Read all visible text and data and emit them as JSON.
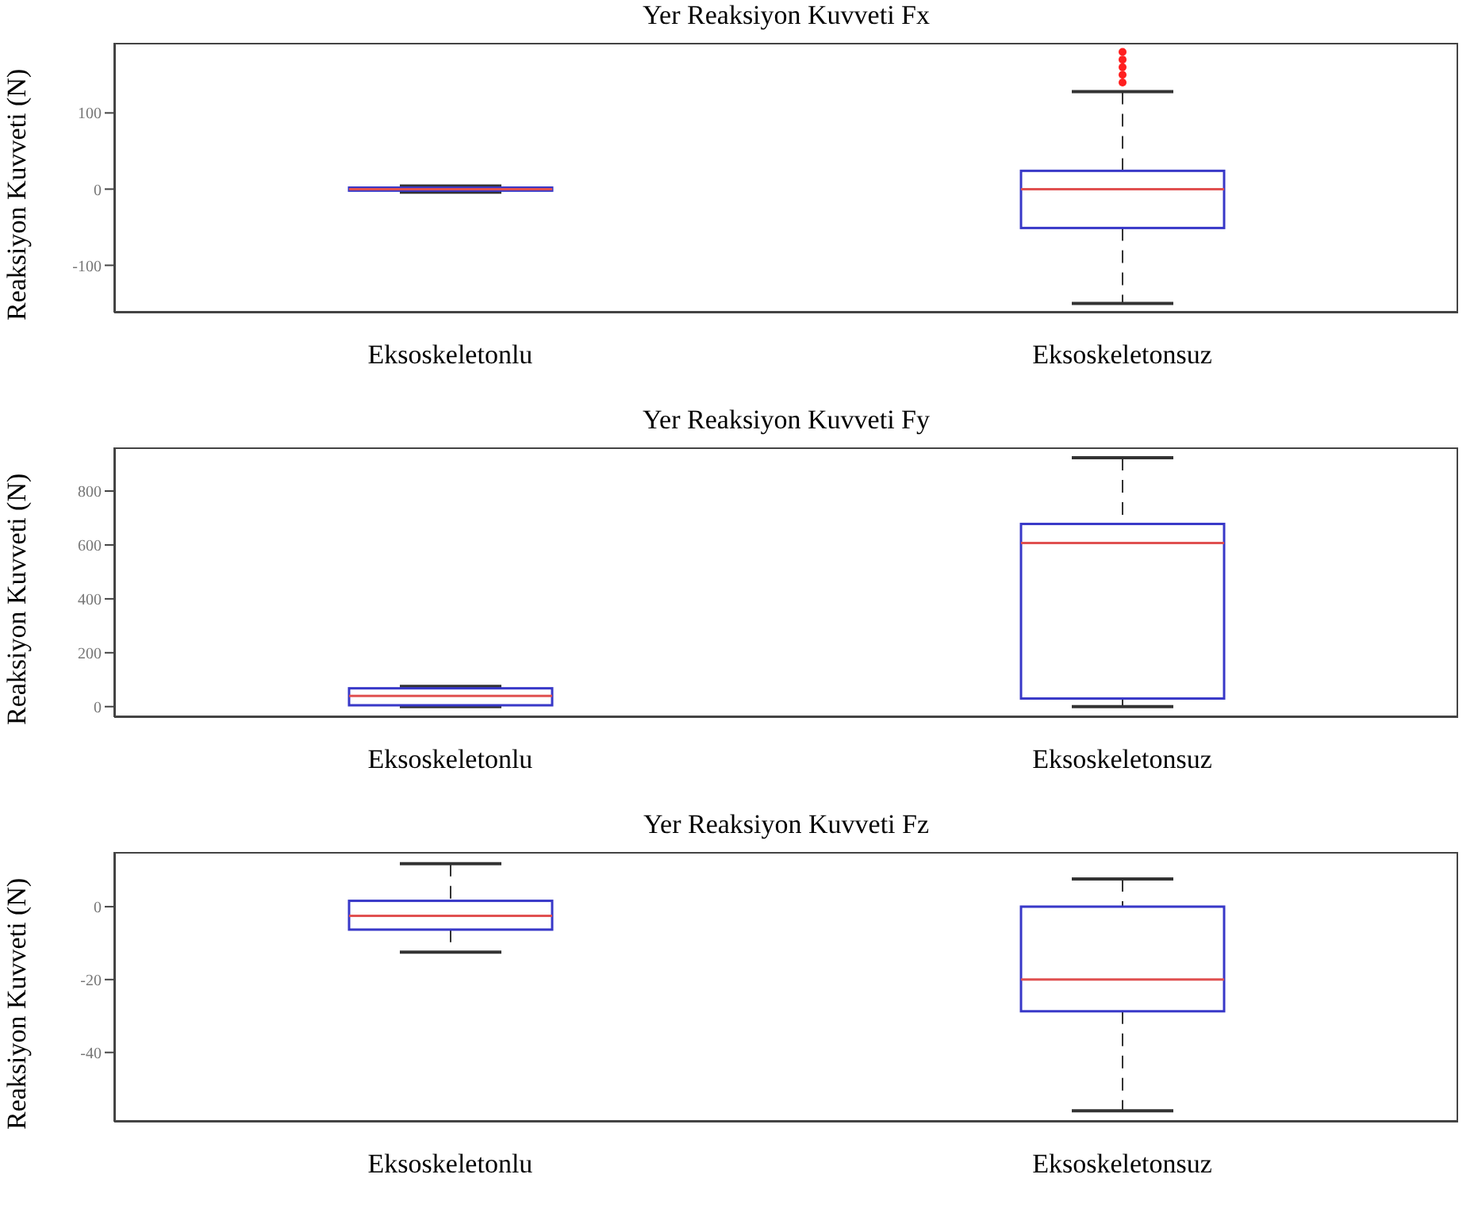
{
  "chart_data": [
    {
      "type": "box",
      "title": "Yer Reaksiyon Kuvveti Fx",
      "ylabel": "Reaksiyon Kuvveti (N)",
      "categories": [
        "Eksoskeletonlu",
        "Eksoskeletonsuz"
      ],
      "ylim": [
        -162,
        192
      ],
      "yticks": [
        -100,
        0,
        100
      ],
      "series": [
        {
          "color": "#3838c8",
          "boxes": [
            {
              "low": -4,
              "q1": -2,
              "median": 0,
              "q3": 2,
              "high": 4
            },
            {
              "low": -150,
              "q1": -51,
              "median": 0,
              "q3": 24,
              "high": 128,
              "outliers": [
                140,
                150,
                160,
                170,
                180
              ]
            }
          ]
        }
      ]
    },
    {
      "type": "box",
      "title": "Yer Reaksiyon Kuvveti Fy",
      "ylabel": "Reaksiyon Kuvveti (N)",
      "categories": [
        "Eksoskeletonlu",
        "Eksoskeletonsuz"
      ],
      "ylim": [
        -39,
        962
      ],
      "yticks": [
        0,
        200,
        400,
        600,
        800
      ],
      "series": [
        {
          "color": "#3838c8",
          "boxes": [
            {
              "low": 0,
              "q1": 5,
              "median": 40,
              "q3": 68,
              "high": 75
            },
            {
              "low": 0,
              "q1": 30,
              "median": 607,
              "q3": 678,
              "high": 924
            }
          ]
        }
      ]
    },
    {
      "type": "box",
      "title": "Yer Reaksiyon Kuvveti Fz",
      "ylabel": "Reaksiyon Kuvveti (N)",
      "categories": [
        "Eksoskeletonlu",
        "Eksoskeletonsuz"
      ],
      "ylim": [
        -59,
        15
      ],
      "yticks": [
        -40,
        -20,
        0
      ],
      "series": [
        {
          "color": "#3838c8",
          "boxes": [
            {
              "low": -12.5,
              "q1": -6.3,
              "median": -2.5,
              "q3": 1.6,
              "high": 11.8
            },
            {
              "low": -56,
              "q1": -28.7,
              "median": -20,
              "q3": 0,
              "high": 7.6
            }
          ]
        }
      ]
    }
  ]
}
